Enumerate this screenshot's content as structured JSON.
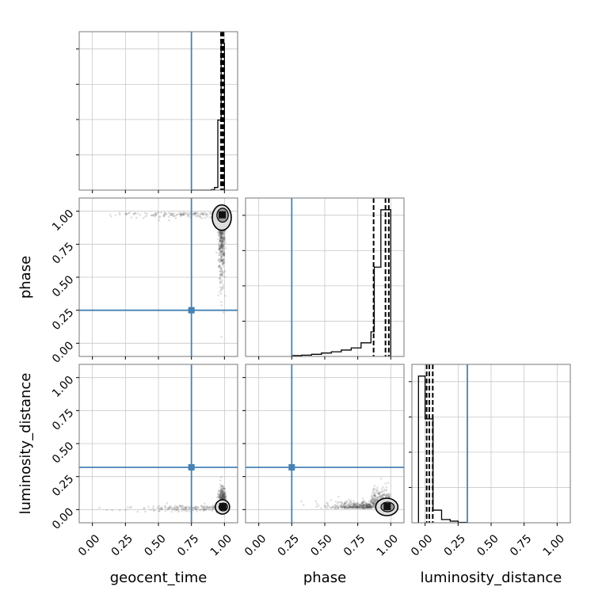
{
  "chart_data": {
    "type": "scatter",
    "parameters": [
      "geocent_time",
      "phase",
      "luminosity_distance"
    ],
    "axis_label_texts": {
      "geocent_time": "geocent_time",
      "phase": "phase",
      "luminosity_distance": "luminosity_distance"
    },
    "range": [
      -0.1,
      1.1
    ],
    "ticks": [
      0.0,
      0.25,
      0.5,
      0.75,
      1.0
    ],
    "tick_labels": [
      "0.00",
      "0.25",
      "0.50",
      "0.75",
      "1.00"
    ],
    "truths": {
      "geocent_time": 0.75,
      "phase": 0.25,
      "luminosity_distance": 0.32
    },
    "quantiles": {
      "geocent_time": [
        0.974,
        0.984,
        0.993
      ],
      "phase": [
        0.87,
        0.96,
        0.985
      ],
      "luminosity_distance": [
        0.012,
        0.032,
        0.058
      ]
    },
    "histograms": {
      "geocent_time": {
        "edges": [
          0.75,
          0.775,
          0.8,
          0.825,
          0.85,
          0.875,
          0.9,
          0.925,
          0.95,
          0.975,
          1.0
        ],
        "counts": [
          0,
          0,
          0,
          0,
          0,
          0,
          1,
          6,
          160,
          335
        ]
      },
      "phase": {
        "edges": [
          0.25,
          0.325,
          0.4,
          0.475,
          0.55,
          0.625,
          0.7,
          0.775,
          0.85,
          0.875,
          0.925,
          1.0
        ],
        "counts": [
          2,
          3,
          5,
          8,
          11,
          15,
          20,
          32,
          58,
          210,
          345
        ]
      },
      "luminosity_distance": {
        "edges": [
          -0.05,
          0.0,
          0.06,
          0.125,
          0.19,
          0.25,
          0.32
        ],
        "counts": [
          360,
          255,
          31,
          8,
          4,
          1
        ]
      }
    },
    "scatter": {
      "geocent_time_vs_phase": {
        "core": [
          0.98,
          0.97
        ],
        "spread": [
          0.02,
          0.07
        ]
      },
      "geocent_time_vs_luminosity_distance": {
        "core": [
          0.985,
          0.02
        ],
        "spread": [
          0.02,
          0.05
        ]
      },
      "phase_vs_luminosity_distance": {
        "core": [
          0.97,
          0.02
        ],
        "spread": [
          0.12,
          0.04
        ]
      }
    },
    "colors": {
      "truth": "#4682b4",
      "hist": "#000000",
      "points": "#555555",
      "grid": "#c8c8c8"
    },
    "grid": true
  }
}
